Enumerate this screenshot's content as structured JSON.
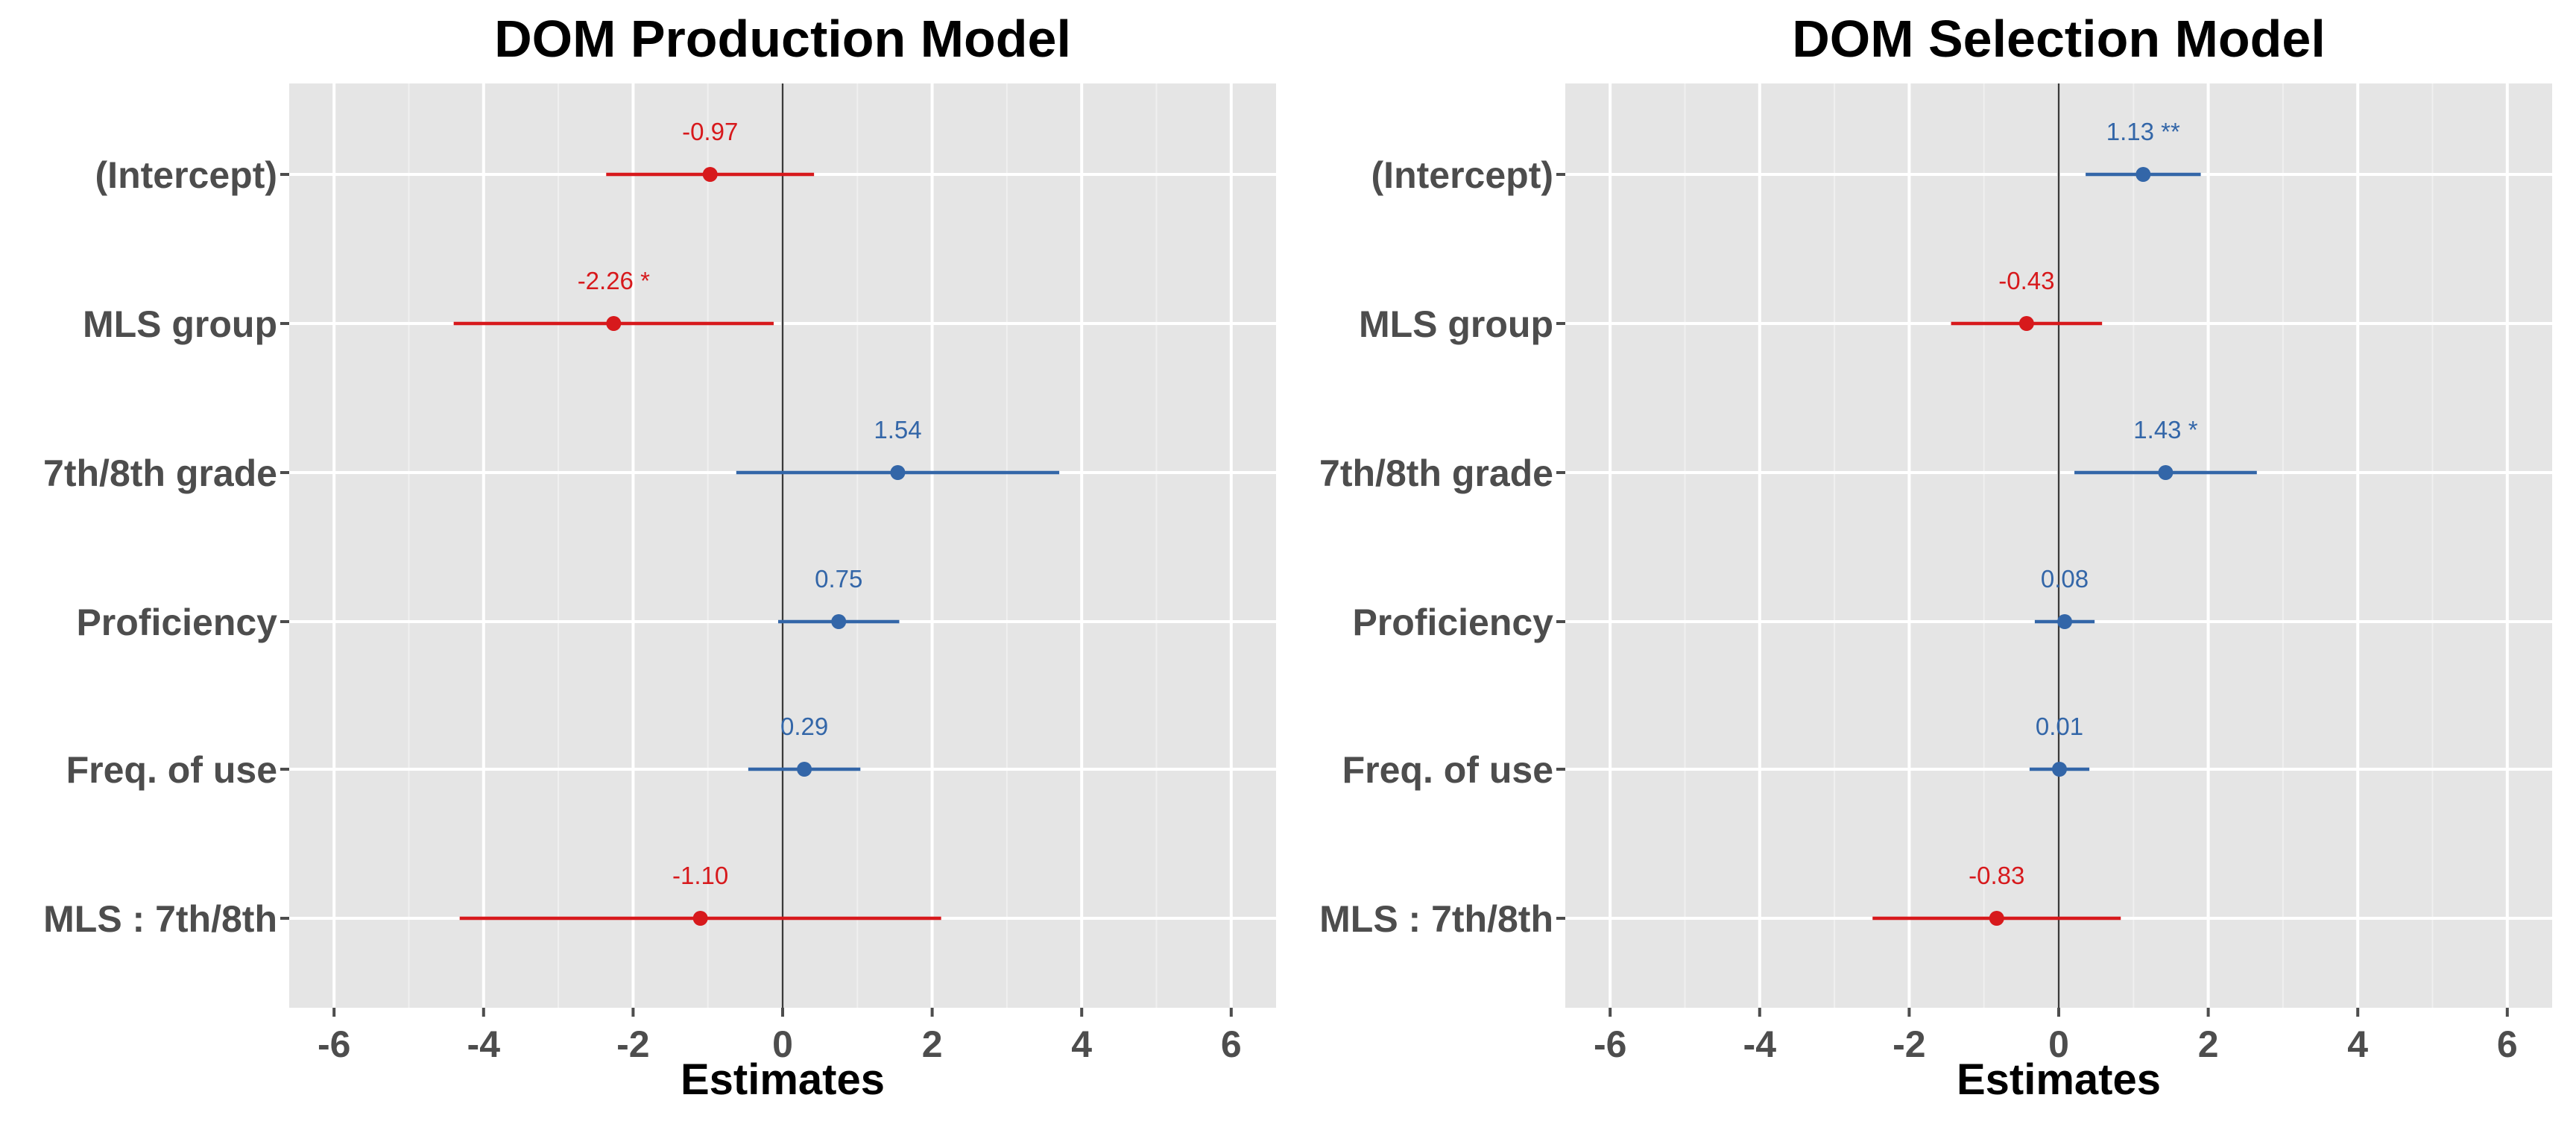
{
  "chart_data": [
    {
      "type": "forest",
      "title": "DOM Production Model",
      "xlabel": "Estimates",
      "xlim": [
        -6.6,
        6.6
      ],
      "xticks": [
        -6,
        -4,
        -2,
        0,
        2,
        4,
        6
      ],
      "xtick_labels": [
        "-6",
        "-4",
        "-2",
        "0",
        "2",
        "4",
        "6"
      ],
      "grid": true,
      "terms": [
        "(Intercept)",
        "MLS group",
        "7th/8th grade",
        "Proficiency",
        "Freq. of use",
        "MLS : 7th/8th"
      ],
      "estimates": [
        {
          "term": "(Intercept)",
          "estimate": -0.97,
          "ci_low": -2.36,
          "ci_high": 0.42,
          "label": "-0.97",
          "sign": "negative"
        },
        {
          "term": "MLS group",
          "estimate": -2.26,
          "ci_low": -4.4,
          "ci_high": -0.12,
          "label": "-2.26 *",
          "sign": "negative"
        },
        {
          "term": "7th/8th grade",
          "estimate": 1.54,
          "ci_low": -0.62,
          "ci_high": 3.7,
          "label": "1.54",
          "sign": "positive"
        },
        {
          "term": "Proficiency",
          "estimate": 0.75,
          "ci_low": -0.06,
          "ci_high": 1.56,
          "label": "0.75",
          "sign": "positive"
        },
        {
          "term": "Freq. of use",
          "estimate": 0.29,
          "ci_low": -0.46,
          "ci_high": 1.04,
          "label": "0.29",
          "sign": "positive"
        },
        {
          "term": "MLS : 7th/8th",
          "estimate": -1.1,
          "ci_low": -4.32,
          "ci_high": 2.12,
          "label": "-1.10",
          "sign": "negative"
        }
      ]
    },
    {
      "type": "forest",
      "title": "DOM Selection Model",
      "xlabel": "Estimates",
      "xlim": [
        -6.6,
        6.6
      ],
      "xticks": [
        -6,
        -4,
        -2,
        0,
        2,
        4,
        6
      ],
      "xtick_labels": [
        "-6",
        "-4",
        "-2",
        "0",
        "2",
        "4",
        "6"
      ],
      "grid": true,
      "terms": [
        "(Intercept)",
        "MLS group",
        "7th/8th grade",
        "Proficiency",
        "Freq. of use",
        "MLS : 7th/8th"
      ],
      "estimates": [
        {
          "term": "(Intercept)",
          "estimate": 1.13,
          "ci_low": 0.36,
          "ci_high": 1.9,
          "label": "1.13 **",
          "sign": "positive"
        },
        {
          "term": "MLS group",
          "estimate": -0.43,
          "ci_low": -1.44,
          "ci_high": 0.58,
          "label": "-0.43",
          "sign": "negative"
        },
        {
          "term": "7th/8th grade",
          "estimate": 1.43,
          "ci_low": 0.21,
          "ci_high": 2.65,
          "label": "1.43 *",
          "sign": "positive"
        },
        {
          "term": "Proficiency",
          "estimate": 0.08,
          "ci_low": -0.32,
          "ci_high": 0.48,
          "label": "0.08",
          "sign": "positive"
        },
        {
          "term": "Freq. of use",
          "estimate": 0.01,
          "ci_low": -0.39,
          "ci_high": 0.41,
          "label": "0.01",
          "sign": "positive"
        },
        {
          "term": "MLS : 7th/8th",
          "estimate": -0.83,
          "ci_low": -2.49,
          "ci_high": 0.83,
          "label": "-0.83",
          "sign": "negative"
        }
      ]
    }
  ],
  "colors": {
    "positive": "#3366a8",
    "negative": "#d7191c",
    "panel_bg": "#e5e5e5",
    "grid_major": "#ffffff",
    "grid_minor": "#f0f0f0",
    "zero_line": "#3a3a3a",
    "axis_text": "#4d4d4d",
    "title_text": "#000000"
  }
}
